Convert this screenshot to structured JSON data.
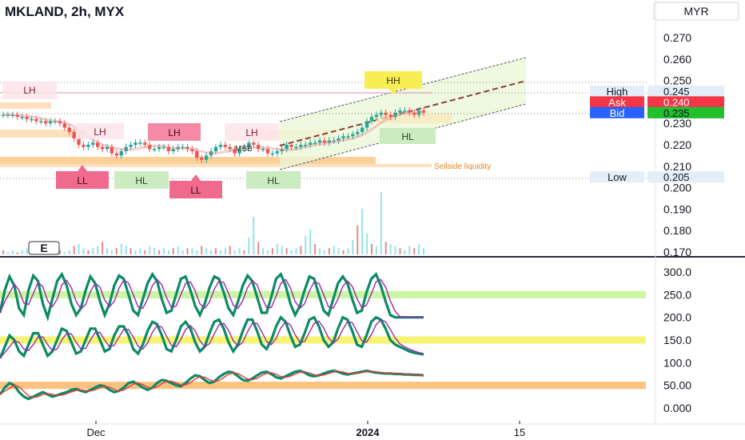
{
  "header": {
    "title": "MKLAND, 2h, MYX",
    "currency_button": "MYR",
    "indicator_badge": "E"
  },
  "colors": {
    "up_candle": "#26a69a",
    "down_candle": "#ef5350",
    "lh_box": "#f8a5b5",
    "hl_box": "#ccebc0",
    "hh_box": "#f7ee55",
    "liquidity_zone": "#f9c98a",
    "osc_purple": "#9c27b0",
    "osc_green": "#0b8a66",
    "band_green": "#ccf5a5",
    "band_yellow": "#f7f475",
    "band_orange": "#fbc281"
  },
  "chart_data": [
    {
      "type": "candlestick",
      "title": "MKLAND, 2h, MYX",
      "xlabel": "",
      "ylabel": "",
      "y_ticks": [
        "0.270",
        "0.260",
        "0.250",
        "0.240",
        "0.230",
        "0.220",
        "0.210",
        "0.200",
        "0.190",
        "0.180",
        "0.170"
      ],
      "ylim": [
        0.167,
        0.282
      ],
      "x_ticks": [
        "Dec",
        "2024",
        "15"
      ],
      "series": [
        {
          "name": "price",
          "values": [
            0.234,
            0.234,
            0.234,
            0.233,
            0.233,
            0.232,
            0.232,
            0.231,
            0.231,
            0.23,
            0.231,
            0.231,
            0.23,
            0.228,
            0.226,
            0.223,
            0.22,
            0.219,
            0.22,
            0.221,
            0.219,
            0.218,
            0.219,
            0.216,
            0.215,
            0.217,
            0.219,
            0.22,
            0.221,
            0.221,
            0.22,
            0.218,
            0.218,
            0.219,
            0.219,
            0.217,
            0.218,
            0.219,
            0.219,
            0.218,
            0.217,
            0.214,
            0.213,
            0.215,
            0.217,
            0.219,
            0.22,
            0.219,
            0.218,
            0.216,
            0.218,
            0.219,
            0.221,
            0.22,
            0.218,
            0.218,
            0.216,
            0.216,
            0.217,
            0.218,
            0.22,
            0.219,
            0.219,
            0.22,
            0.22,
            0.221,
            0.221,
            0.222,
            0.221,
            0.222,
            0.222,
            0.223,
            0.224,
            0.224,
            0.225,
            0.226,
            0.228,
            0.231,
            0.233,
            0.234,
            0.235,
            0.234,
            0.233,
            0.235,
            0.236,
            0.236,
            0.235,
            0.234,
            0.236,
            0.235
          ]
        }
      ],
      "price_labels": [
        {
          "label": "High",
          "value": "0.245"
        },
        {
          "label": "Ask",
          "value": "0.240"
        },
        {
          "label": "Bid",
          "value": "0.235"
        },
        {
          "label": "",
          "value": "0.235"
        },
        {
          "label": "Low",
          "value": "0.205"
        }
      ],
      "structure_labels": [
        "LH",
        "LH",
        "LH",
        "LH",
        "LL",
        "HL",
        "LL",
        "HL",
        "HH",
        "HL"
      ],
      "annotations": [
        "Sellside liquidity",
        "MSB"
      ],
      "volume": [
        0.02,
        0.01,
        0.02,
        0.01,
        0.02,
        0.03,
        0.01,
        0.02,
        0.02,
        0.01,
        0.02,
        0.03,
        0.02,
        0.01,
        0.02,
        0.04,
        0.05,
        0.03,
        0.02,
        0.03,
        0.04,
        0.06,
        0.03,
        0.02,
        0.03,
        0.05,
        0.04,
        0.03,
        0.02,
        0.03,
        0.02,
        0.04,
        0.03,
        0.02,
        0.03,
        0.02,
        0.03,
        0.04,
        0.02,
        0.03,
        0.03,
        0.02,
        0.04,
        0.03,
        0.02,
        0.03,
        0.02,
        0.03,
        0.04,
        0.02,
        0.03,
        0.02,
        0.08,
        0.18,
        0.06,
        0.03,
        0.02,
        0.03,
        0.05,
        0.04,
        0.03,
        0.02,
        0.03,
        0.04,
        0.09,
        0.12,
        0.05,
        0.03,
        0.02,
        0.03,
        0.04,
        0.03,
        0.02,
        0.03,
        0.07,
        0.14,
        0.22,
        0.1,
        0.05,
        0.04,
        0.3,
        0.06,
        0.05,
        0.04,
        0.03,
        0.02,
        0.04,
        0.03,
        0.05,
        0.03
      ]
    },
    {
      "type": "line",
      "title": "",
      "xlabel": "",
      "ylabel": "",
      "y_ticks": [
        "300.0",
        "250.0",
        "200.0",
        "150.0",
        "100.0",
        "50.00",
        "0.000"
      ],
      "ylim": [
        -10,
        310
      ],
      "bands": [
        {
          "from": 242,
          "to": 258,
          "color": "#ccf5a5"
        },
        {
          "from": 142,
          "to": 158,
          "color": "#f7f475"
        },
        {
          "from": 42,
          "to": 58,
          "color": "#fbc281"
        }
      ],
      "series": [
        {
          "name": "",
          "values": [
            210,
            260,
            290,
            270,
            220,
            205,
            260,
            292,
            280,
            230,
            200,
            240,
            280,
            295,
            270,
            230,
            205,
            220,
            260,
            290,
            275,
            235,
            205,
            230,
            270,
            292,
            285,
            250,
            215,
            205,
            240,
            275,
            295,
            280,
            240,
            210,
            215,
            250,
            285,
            290,
            260,
            225,
            205,
            230,
            265,
            290,
            285,
            255,
            220,
            205,
            235,
            270,
            292,
            280,
            245,
            210,
            210,
            245,
            285,
            295,
            270,
            230,
            205,
            225,
            260,
            290,
            285,
            250,
            215,
            205,
            240,
            275,
            290,
            275,
            240,
            210,
            215,
            255,
            285,
            295,
            270,
            235,
            205,
            200,
            200,
            200,
            200,
            200,
            200,
            200
          ]
        },
        {
          "name": "",
          "values": [
            110,
            135,
            160,
            150,
            125,
            115,
            140,
            165,
            165,
            140,
            115,
            125,
            150,
            175,
            170,
            145,
            120,
            125,
            150,
            175,
            175,
            150,
            125,
            130,
            160,
            180,
            180,
            160,
            130,
            120,
            140,
            170,
            190,
            185,
            160,
            130,
            125,
            150,
            180,
            190,
            175,
            145,
            125,
            135,
            165,
            190,
            195,
            175,
            145,
            125,
            140,
            170,
            195,
            195,
            170,
            140,
            130,
            150,
            180,
            200,
            190,
            160,
            135,
            140,
            165,
            195,
            200,
            180,
            150,
            135,
            145,
            175,
            200,
            195,
            170,
            140,
            135,
            160,
            190,
            200,
            195,
            175,
            150,
            140,
            135,
            130,
            125,
            122,
            120,
            118
          ]
        },
        {
          "name": "",
          "values": [
            30,
            45,
            55,
            50,
            35,
            25,
            20,
            25,
            30,
            35,
            30,
            25,
            28,
            32,
            35,
            40,
            42,
            38,
            35,
            40,
            45,
            50,
            48,
            40,
            35,
            38,
            45,
            55,
            58,
            52,
            45,
            40,
            45,
            55,
            62,
            60,
            55,
            50,
            48,
            55,
            65,
            72,
            70,
            62,
            55,
            58,
            68,
            75,
            80,
            78,
            70,
            62,
            60,
            65,
            72,
            78,
            80,
            75,
            68,
            65,
            70,
            75,
            80,
            82,
            78,
            72,
            70,
            72,
            76,
            80,
            82,
            80,
            76,
            74,
            76,
            78,
            80,
            82,
            80,
            78,
            77,
            76,
            76,
            75,
            75,
            74,
            74,
            73,
            73,
            72
          ]
        }
      ]
    }
  ]
}
